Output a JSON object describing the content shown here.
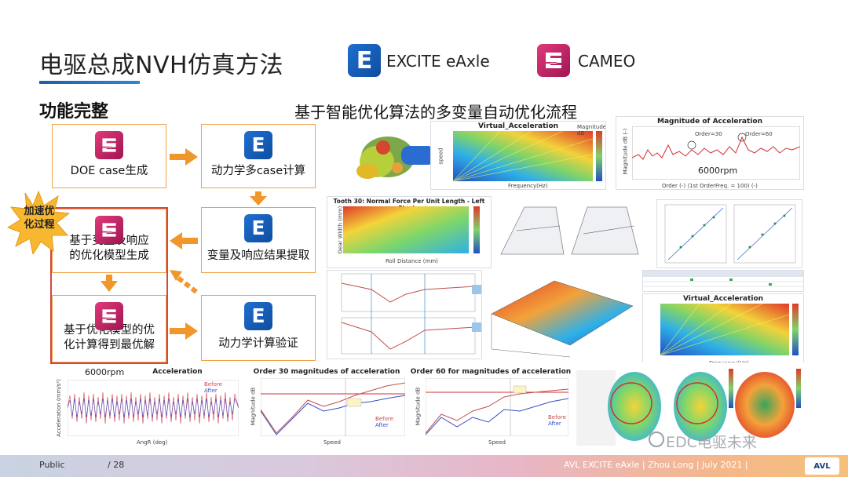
{
  "header": {
    "title": "电驱总成NVH仿真方法",
    "brand1": "EXCITE eAxle",
    "brand2": "CAMEO",
    "logo_e_letter": "E"
  },
  "section": {
    "heading": "功能完整",
    "flow_title": "基于智能优化算法的多变量自动优化流程"
  },
  "flow": {
    "doe": "DOE case生成",
    "multi_case": "动力学多case计算",
    "extract": "变量及响应结果提取",
    "model_gen_line1": "基于变量及响应",
    "model_gen_line2": "的优化模型生成",
    "optimize_line1": "基于优化模型的优",
    "optimize_line2": "化计算得到最优解",
    "verify": "动力学计算验证",
    "burst_line1": "加速优",
    "burst_line2": "化过程"
  },
  "panels": {
    "virtual_acc": "Virtual_Acceleration",
    "virtual_acc_xlabel": "Frequency(Hz)",
    "virtual_acc_ylabel": "speed",
    "virtual_acc_unit": "Magnitude dB",
    "mag_acc_title": "Magnitude of Acceleration",
    "mag_acc_xlabel": "Order (-) (1st OrderFreq. = 100) (-)",
    "mag_acc_ylabel": "Magnitude dB (-)",
    "mag_acc_rpm": "6000rpm",
    "mag_acc_o30": "Order=30",
    "mag_acc_o60": "Order=60",
    "tooth_title": "Tooth 30: Normal Force Per Unit Length - Left Flanks",
    "tooth_xlabel": "Roll Distance (mm)",
    "tooth_ylabel": "Gear Width (mm)",
    "virtual_acc2": "Virtual_Acceleration",
    "virtual_acc2_xlabel": "Frequency(Hz)",
    "acceleration_title": "Acceleration",
    "acceleration_rpm": "6000rpm",
    "acceleration_xlabel": "AngR (deg)",
    "acceleration_ylabel": "Acceleration (mm/s²)",
    "before": "Before",
    "after": "After",
    "order30_title": "Order 30 magnitudes of acceleration",
    "order60_title": "Order 60 for magnitudes of acceleration",
    "speed_label": "Speed",
    "mag_db_label": "Magnitude dB"
  },
  "footer": {
    "left": "Public",
    "page": "/ 28",
    "right": "AVL EXCITE eAxle | Zhou Long | July 2021 |",
    "avl": "AVL",
    "watermark": "EDC电驱未来"
  },
  "colors": {
    "accent_blue": "#1f6fd0",
    "accent_magenta": "#c8266a",
    "box_border": "#f0a24a",
    "arrow_orange": "#f0962a",
    "highlight_red": "#d8463a"
  }
}
